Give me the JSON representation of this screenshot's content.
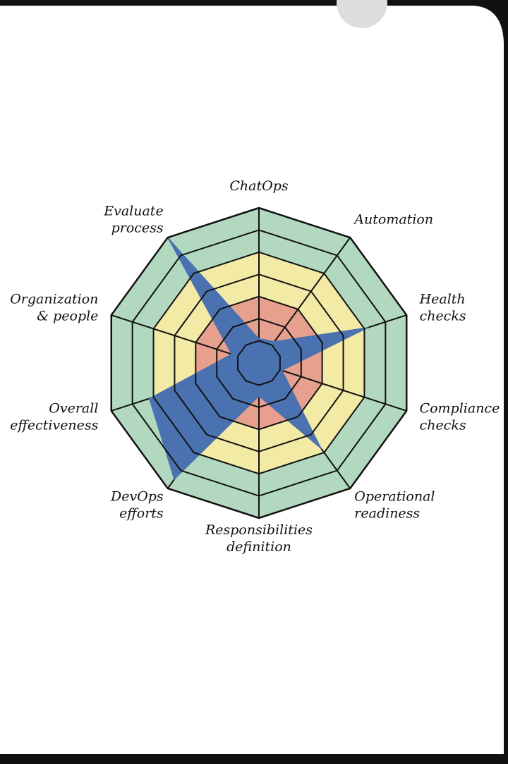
{
  "chart_data": {
    "type": "radar",
    "categories": [
      [
        "ChatOps"
      ],
      [
        "Automation"
      ],
      [
        "Health",
        "checks"
      ],
      [
        "Compliance",
        "checks"
      ],
      [
        "Operational",
        "readiness"
      ],
      [
        "Responsibilities",
        "definition"
      ],
      [
        "DevOps",
        "efforts"
      ],
      [
        "Overall",
        "effectiveness"
      ],
      [
        "Organization",
        "& people"
      ],
      [
        "Evaluate",
        "process"
      ]
    ],
    "values": [
      1.1,
      1.2,
      5.2,
      1.1,
      4.8,
      1.5,
      6.5,
      5.2,
      1.3,
      7
    ],
    "color": "#4a72b0",
    "ylim": [
      0,
      7
    ],
    "yticks": [
      1,
      2,
      3,
      4,
      5,
      6,
      7
    ],
    "bands": [
      {
        "from": 0,
        "to": 3,
        "color": "#e8a08e"
      },
      {
        "from": 3,
        "to": 5,
        "color": "#f3eaa6"
      },
      {
        "from": 5,
        "to": 7,
        "color": "#b2d9bf"
      }
    ],
    "grid": true
  }
}
